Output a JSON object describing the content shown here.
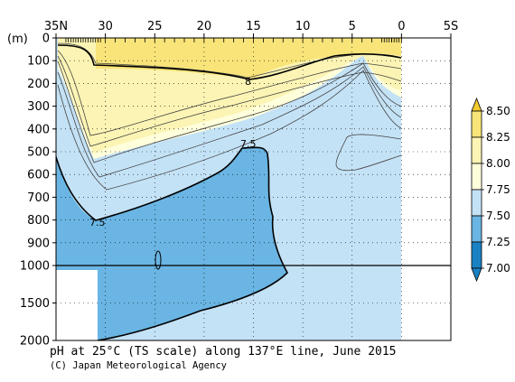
{
  "chart_data": {
    "type": "contour",
    "title": "pH at 25°C (TS scale) along 137°E line, June 2015",
    "credit": "(C) Japan Meteorological Agency",
    "x_axis": {
      "ticks": [
        "35N",
        "30",
        "25",
        "20",
        "15",
        "10",
        "5",
        "0",
        "5S"
      ],
      "tick_values": [
        35,
        30,
        25,
        20,
        15,
        10,
        5,
        0,
        -5
      ],
      "range": [
        35,
        -5
      ]
    },
    "y_axis": {
      "unit": "(m)",
      "upper_ticks": [
        0,
        100,
        200,
        300,
        400,
        500,
        600,
        700,
        800,
        900,
        1000
      ],
      "lower_ticks": [
        1500,
        2000
      ],
      "upper_range": [
        0,
        1000
      ],
      "lower_range": [
        1000,
        2000
      ],
      "scale_break_at": 1000
    },
    "colorbar": {
      "levels": [
        "8.50",
        "8.25",
        "8.00",
        "7.75",
        "7.50",
        "7.25",
        "7.00"
      ],
      "colors": [
        "#f2cc2e",
        "#f8e479",
        "#fcf4b4",
        "#ffffdc",
        "#c4e2f6",
        "#6ab5e3",
        "#1a82c4"
      ]
    },
    "contour_labels": [
      {
        "text": "8",
        "lat": 15.2,
        "depth": 185
      },
      {
        "text": "7.5",
        "lat": 15.3,
        "depth": 455
      },
      {
        "text": "7.5",
        "lat": 30.6,
        "depth": 810
      }
    ],
    "observed_field": "pH at 25°C",
    "section": "137°E",
    "date": "June 2015"
  }
}
